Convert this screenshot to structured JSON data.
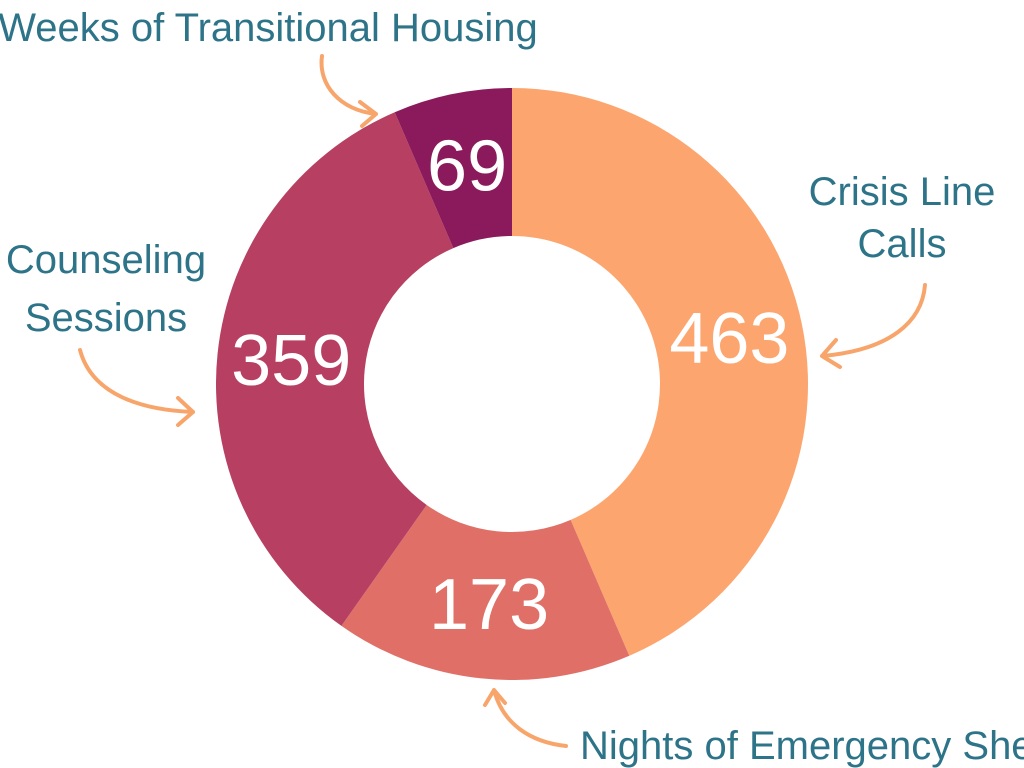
{
  "chart_data": {
    "type": "pie",
    "variant": "donut",
    "title": "",
    "slices": [
      {
        "label": "Crisis Line Calls",
        "label_lines": [
          "Crisis Line",
          "Calls"
        ],
        "value": 463,
        "color": "#FCA56E"
      },
      {
        "label": "Nights of Emergency Shelter",
        "label_lines": [
          "Nights of Emergency Shelter"
        ],
        "value": 173,
        "color": "#E07067"
      },
      {
        "label": "Counseling Sessions",
        "label_lines": [
          "Counseling",
          "Sessions"
        ],
        "value": 359,
        "color": "#B74062"
      },
      {
        "label": "Weeks of Transitional Housing",
        "label_lines": [
          "Weeks of Transitional Housing"
        ],
        "value": 69,
        "color": "#8B1A5C"
      }
    ],
    "label_color": "#2E7489",
    "arrow_color": "#F8A56C",
    "value_label_color": "#FFFFFF",
    "start": "12 o'clock",
    "direction": "clockwise"
  }
}
